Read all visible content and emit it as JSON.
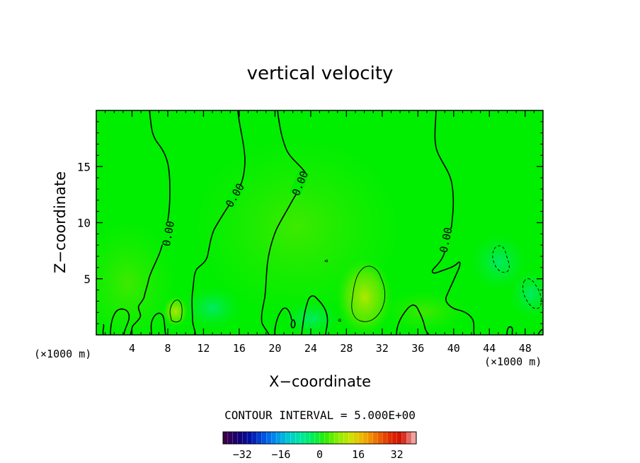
{
  "chart_data": {
    "type": "heatmap",
    "title": "vertical velocity",
    "xlabel": "X−coordinate",
    "ylabel": "Z−coordinate",
    "x_unit_label": "(×1000 m)",
    "xlim": [
      0,
      50
    ],
    "ylim": [
      0,
      20
    ],
    "x_ticks": [
      4,
      8,
      12,
      16,
      20,
      24,
      28,
      32,
      36,
      40,
      44,
      48
    ],
    "y_ticks": [
      5,
      10,
      15
    ],
    "x_tick_labels": [
      "4",
      "8",
      "12",
      "16",
      "20",
      "24",
      "28",
      "32",
      "36",
      "40",
      "44",
      "48"
    ],
    "y_tick_labels": [
      "5",
      "10",
      "15"
    ],
    "contour_interval_text": "CONTOUR INTERVAL = 5.000E+00",
    "contour_labels": [
      "0.00",
      "0.00",
      "0.00",
      "0.00"
    ],
    "background_color": "#00ee00",
    "colorbar": {
      "range": [
        -40,
        40
      ],
      "ticks": [
        -32,
        -16,
        0,
        16,
        32
      ],
      "tick_labels": [
        "−32",
        "−16",
        "0",
        "16",
        "32"
      ],
      "colors": [
        "#3a004a",
        "#180070",
        "#0010a8",
        "#0050e0",
        "#0090f0",
        "#00c8d0",
        "#00e8a0",
        "#00ee50",
        "#30ee00",
        "#90ee00",
        "#d0e000",
        "#f0b000",
        "#f07000",
        "#e03000",
        "#d01000",
        "#f0a0a0"
      ]
    }
  }
}
